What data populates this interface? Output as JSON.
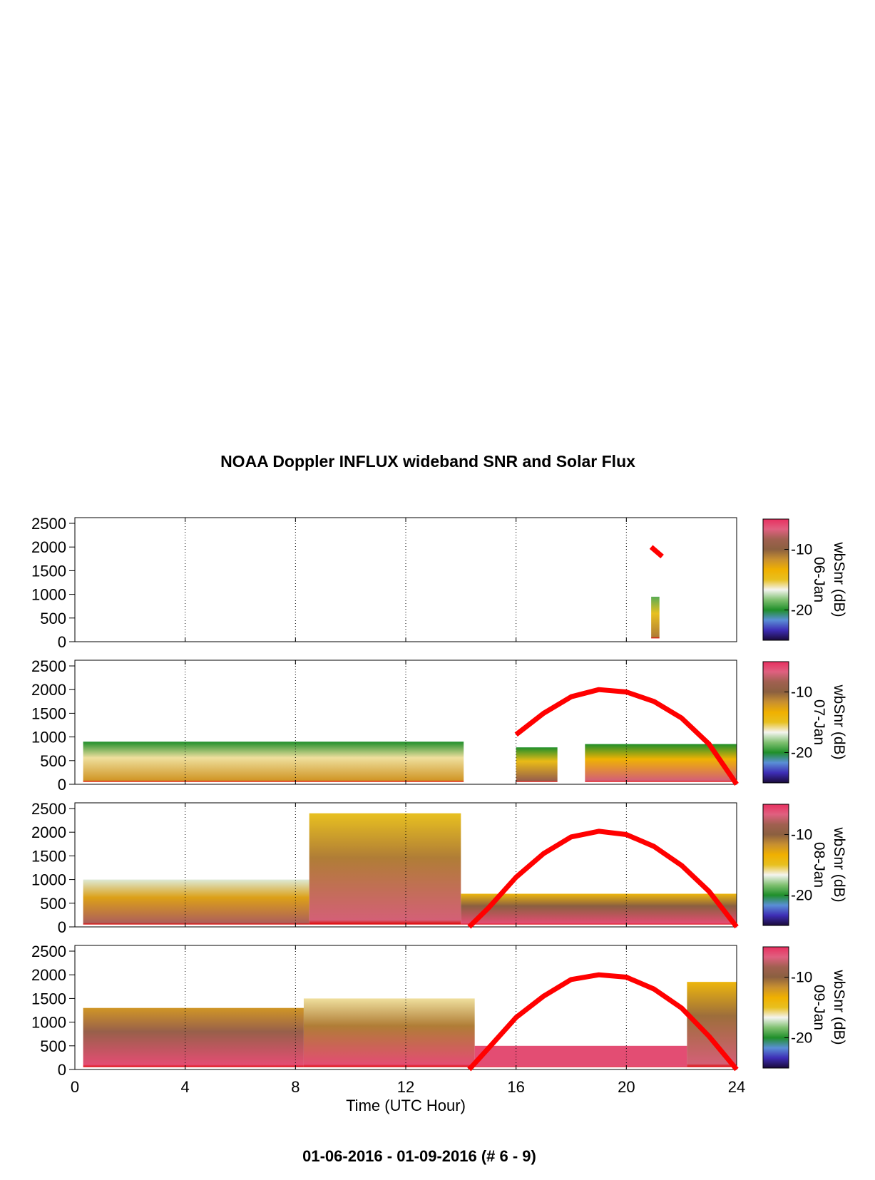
{
  "title": "NOAA Doppler INFLUX wideband SNR and Solar Flux",
  "footer": "01-06-2016 - 01-09-2016   (# 6 - 9)",
  "chart_data": {
    "type": "heatmap",
    "title": "NOAA Doppler INFLUX wideband SNR and Solar Flux",
    "xlabel": "Time (UTC Hour)",
    "xlim": [
      0,
      24
    ],
    "x_ticks": [
      "0",
      "4",
      "8",
      "12",
      "16",
      "20",
      "24"
    ],
    "ylim": [
      0,
      2500
    ],
    "y_ticks": [
      "0",
      "500",
      "1000",
      "1500",
      "2000",
      "2500"
    ],
    "grid": "vertical dotted at 4-hour intervals",
    "colorbar": {
      "label": "wbSnr (dB)",
      "range": [
        -25,
        -5
      ],
      "ticks": [
        "-10",
        "-20"
      ],
      "colors": [
        "#1a0a3a",
        "#3d2db5",
        "#5a8fd6",
        "#1f8f2a",
        "#7fc070",
        "#f4f4f0",
        "#e8c020",
        "#f0b000",
        "#c89030",
        "#8b6040",
        "#a06050",
        "#e06080",
        "#e83060"
      ]
    },
    "solar_flux_color": "#ff0000",
    "panels": [
      {
        "date": "06-Jan",
        "snr_columns": [
          {
            "x": [
              20.9,
              21.2
            ],
            "y": [
              70,
              950
            ],
            "snr_bottom": -11,
            "snr_top": -19
          }
        ],
        "solar_flux": [
          [
            20.9,
            2000
          ],
          [
            21.3,
            1800
          ]
        ]
      },
      {
        "date": "07-Jan",
        "snr_columns": [
          {
            "x": [
              0.3,
              14.1
            ],
            "y": [
              50,
              900
            ],
            "snr_bottom": -12,
            "snr_top": -20
          },
          {
            "x": [
              16.0,
              17.5
            ],
            "y": [
              50,
              780
            ],
            "snr_bottom": -9,
            "snr_top": -20
          },
          {
            "x": [
              18.5,
              24.0
            ],
            "y": [
              50,
              850
            ],
            "snr_bottom": -7,
            "snr_top": -20
          }
        ],
        "solar_flux": [
          [
            16.0,
            1050
          ],
          [
            17.0,
            1500
          ],
          [
            18.0,
            1850
          ],
          [
            19.0,
            2000
          ],
          [
            20.0,
            1950
          ],
          [
            21.0,
            1750
          ],
          [
            22.0,
            1400
          ],
          [
            23.0,
            850
          ],
          [
            24.0,
            0
          ]
        ]
      },
      {
        "date": "08-Jan",
        "snr_columns": [
          {
            "x": [
              0.3,
              8.5
            ],
            "y": [
              50,
              1000
            ],
            "snr_bottom": -8,
            "snr_top": -17
          },
          {
            "x": [
              8.5,
              14.0
            ],
            "y": [
              50,
              2400
            ],
            "snr_bottom": -7,
            "snr_top": -15
          },
          {
            "x": [
              14.0,
              24.0
            ],
            "y": [
              50,
              700
            ],
            "snr_bottom": -6,
            "snr_top": -14
          }
        ],
        "solar_flux": [
          [
            14.3,
            0
          ],
          [
            15.0,
            400
          ],
          [
            16.0,
            1050
          ],
          [
            17.0,
            1550
          ],
          [
            18.0,
            1900
          ],
          [
            19.0,
            2020
          ],
          [
            20.0,
            1950
          ],
          [
            21.0,
            1700
          ],
          [
            22.0,
            1300
          ],
          [
            23.0,
            750
          ],
          [
            24.0,
            0
          ]
        ]
      },
      {
        "date": "09-Jan",
        "snr_columns": [
          {
            "x": [
              0.3,
              8.3
            ],
            "y": [
              50,
              1300
            ],
            "snr_bottom": -6,
            "snr_top": -12
          },
          {
            "x": [
              8.3,
              14.5
            ],
            "y": [
              50,
              1500
            ],
            "snr_bottom": -6,
            "snr_top": -16
          },
          {
            "x": [
              14.5,
              22.2
            ],
            "y": [
              50,
              500
            ],
            "snr_bottom": -6,
            "snr_top": -6
          },
          {
            "x": [
              22.2,
              24.0
            ],
            "y": [
              50,
              1850
            ],
            "snr_bottom": -7,
            "snr_top": -14
          }
        ],
        "solar_flux": [
          [
            14.3,
            0
          ],
          [
            15.0,
            450
          ],
          [
            16.0,
            1100
          ],
          [
            17.0,
            1550
          ],
          [
            18.0,
            1900
          ],
          [
            19.0,
            2000
          ],
          [
            20.0,
            1950
          ],
          [
            21.0,
            1700
          ],
          [
            22.0,
            1300
          ],
          [
            23.0,
            700
          ],
          [
            24.0,
            0
          ]
        ]
      }
    ]
  }
}
